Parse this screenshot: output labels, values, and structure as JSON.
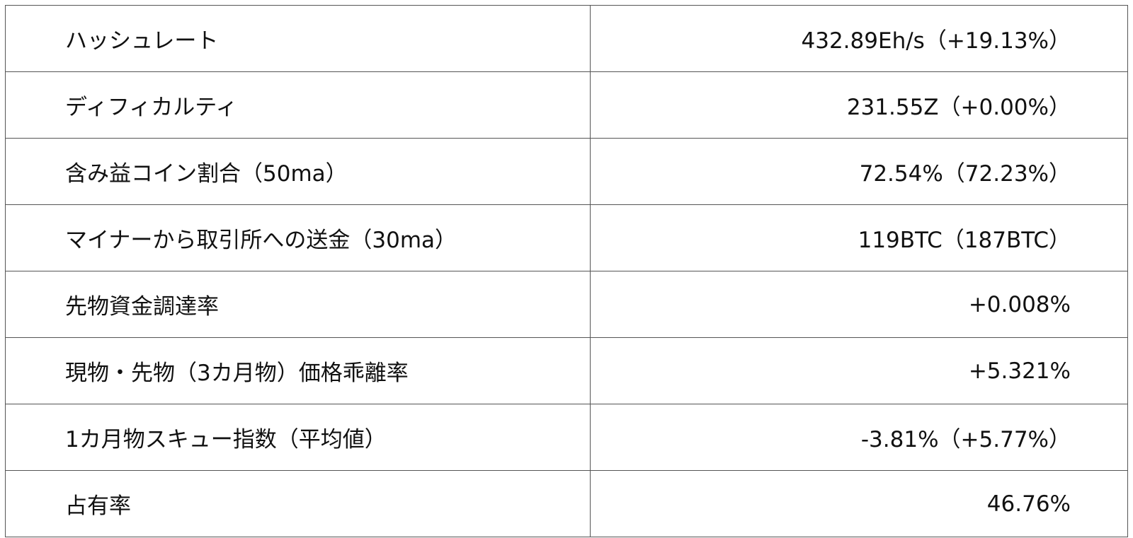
{
  "rows": [
    {
      "label": "ハッシュレート",
      "value": "432.89Eh/s（+19.13%）"
    },
    {
      "label": "ディフィカルティ",
      "value": "231.55Z（+0.00%）"
    },
    {
      "label": "含み益コイン割合（50ma）",
      "value": "72.54%（72.23%）"
    },
    {
      "label": "マイナーから取引所への送金（30ma）",
      "value": "119BTC（187BTC）"
    },
    {
      "label": "先物資金調達率",
      "value": "+0.008%"
    },
    {
      "label": "現物・先物（3カ月物）価格乖離率",
      "value": "+5.321%"
    },
    {
      "label": "1カ月物スキュー指数（平均値）",
      "value": "-3.81%（+5.77%）"
    },
    {
      "label": "占有率",
      "value": "46.76%"
    }
  ]
}
